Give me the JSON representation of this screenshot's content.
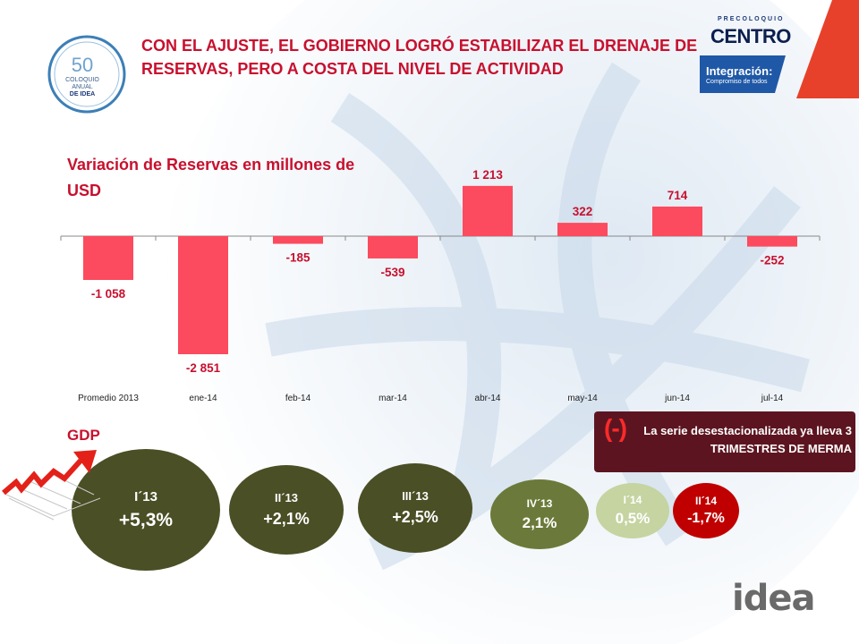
{
  "header": {
    "title": "CON EL AJUSTE, EL GOBIERNO LOGRÓ ESTABILIZAR EL DRENAJE DE RESERVAS, PERO  A COSTA DEL NIVEL DE ACTIVIDAD",
    "logo_number": "50",
    "logo_text_lines": [
      "COLOQUIO",
      "ANUAL",
      "DE IDEA"
    ]
  },
  "brand": {
    "pre": "PRECOLOQUIO",
    "name": "CENTRO",
    "integration": "Integración:",
    "tagline": "Compromiso de todos"
  },
  "reserves": {
    "title": "Variación de Reservas en millones de USD"
  },
  "chart_data": {
    "type": "bar",
    "title": "Variación de Reservas en millones de USD",
    "categories": [
      "Promedio 2013",
      "ene-14",
      "feb-14",
      "mar-14",
      "abr-14",
      "may-14",
      "jun-14",
      "jul-14"
    ],
    "values": [
      -1058,
      -2851,
      -185,
      -539,
      1213,
      322,
      714,
      -252
    ],
    "labels": [
      "-1 058",
      "-2 851",
      "-185",
      "-539",
      "1 213",
      "322",
      "714",
      "-252"
    ],
    "ylim": [
      -3000,
      1300
    ],
    "color": "#fc4a5e",
    "label_color": "#c8102e"
  },
  "gdp": {
    "title": "GDP",
    "quarters": [
      {
        "label": "I´13",
        "value": "+5,3%"
      },
      {
        "label": "II´13",
        "value": "+2,1%"
      },
      {
        "label": "III´13",
        "value": "+2,5%"
      },
      {
        "label": "IV´13",
        "value": "2,1%"
      },
      {
        "label": "I´14",
        "value": "0,5%"
      },
      {
        "label": "II´14",
        "value": "-1,7%"
      }
    ],
    "colors": {
      "dark": "#4a4f25",
      "green": "#6b7a3a",
      "light": "#c5d4a1",
      "red": "#c00000"
    }
  },
  "note": {
    "sign": "(-)",
    "text": "La serie desestacionalizada ya lleva 3 TRIMESTRES DE MERMA"
  },
  "footer": {
    "logo": "idea"
  }
}
